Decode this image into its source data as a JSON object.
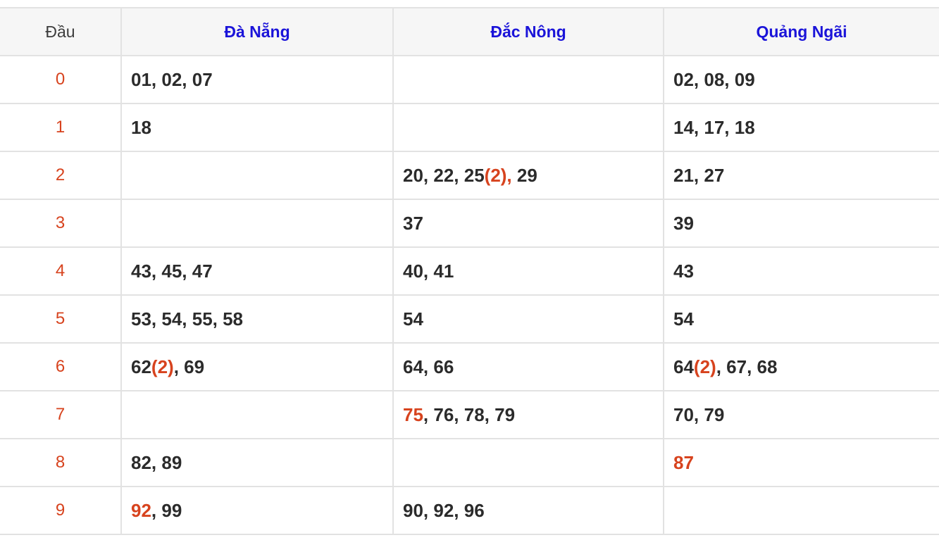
{
  "colors": {
    "highlight_red": "#d7431e",
    "header_blue": "#1b14d9",
    "header_bg": "#f6f6f6",
    "border": "#e2e2e2",
    "number_text": "#2b2b2b",
    "corner_text": "#3d3d3d"
  },
  "table": {
    "header": {
      "corner": "Đầu",
      "columns": [
        "Đà Nẵng",
        "Đắc Nông",
        "Quảng Ngãi"
      ]
    },
    "rows": [
      {
        "digit": "0",
        "cells": [
          [
            {
              "t": "01, 02, 07"
            }
          ],
          [],
          [
            {
              "t": "02, 08, 09"
            }
          ]
        ]
      },
      {
        "digit": "1",
        "cells": [
          [
            {
              "t": "18"
            }
          ],
          [],
          [
            {
              "t": "14, 17, 18"
            }
          ]
        ]
      },
      {
        "digit": "2",
        "cells": [
          [],
          [
            {
              "t": "20, 22, 25"
            },
            {
              "t": "(2),",
              "red": true
            },
            {
              "t": " 29"
            }
          ],
          [
            {
              "t": "21, 27"
            }
          ]
        ]
      },
      {
        "digit": "3",
        "cells": [
          [],
          [
            {
              "t": "37"
            }
          ],
          [
            {
              "t": "39"
            }
          ]
        ]
      },
      {
        "digit": "4",
        "cells": [
          [
            {
              "t": "43, 45, 47"
            }
          ],
          [
            {
              "t": "40, 41"
            }
          ],
          [
            {
              "t": "43"
            }
          ]
        ]
      },
      {
        "digit": "5",
        "cells": [
          [
            {
              "t": "53, 54, 55, 58"
            }
          ],
          [
            {
              "t": "54"
            }
          ],
          [
            {
              "t": "54"
            }
          ]
        ]
      },
      {
        "digit": "6",
        "cells": [
          [
            {
              "t": "62"
            },
            {
              "t": "(2)",
              "red": true
            },
            {
              "t": ", 69"
            }
          ],
          [
            {
              "t": "64, 66"
            }
          ],
          [
            {
              "t": "64"
            },
            {
              "t": "(2)",
              "red": true
            },
            {
              "t": ", 67, 68"
            }
          ]
        ]
      },
      {
        "digit": "7",
        "cells": [
          [],
          [
            {
              "t": "75",
              "red": true
            },
            {
              "t": ", 76, 78, 79"
            }
          ],
          [
            {
              "t": "70, 79"
            }
          ]
        ]
      },
      {
        "digit": "8",
        "cells": [
          [
            {
              "t": "82, 89"
            }
          ],
          [],
          [
            {
              "t": "87",
              "red": true
            }
          ]
        ]
      },
      {
        "digit": "9",
        "cells": [
          [
            {
              "t": "92",
              "red": true
            },
            {
              "t": ", 99"
            }
          ],
          [
            {
              "t": "90, 92, 96"
            }
          ],
          []
        ]
      }
    ]
  }
}
